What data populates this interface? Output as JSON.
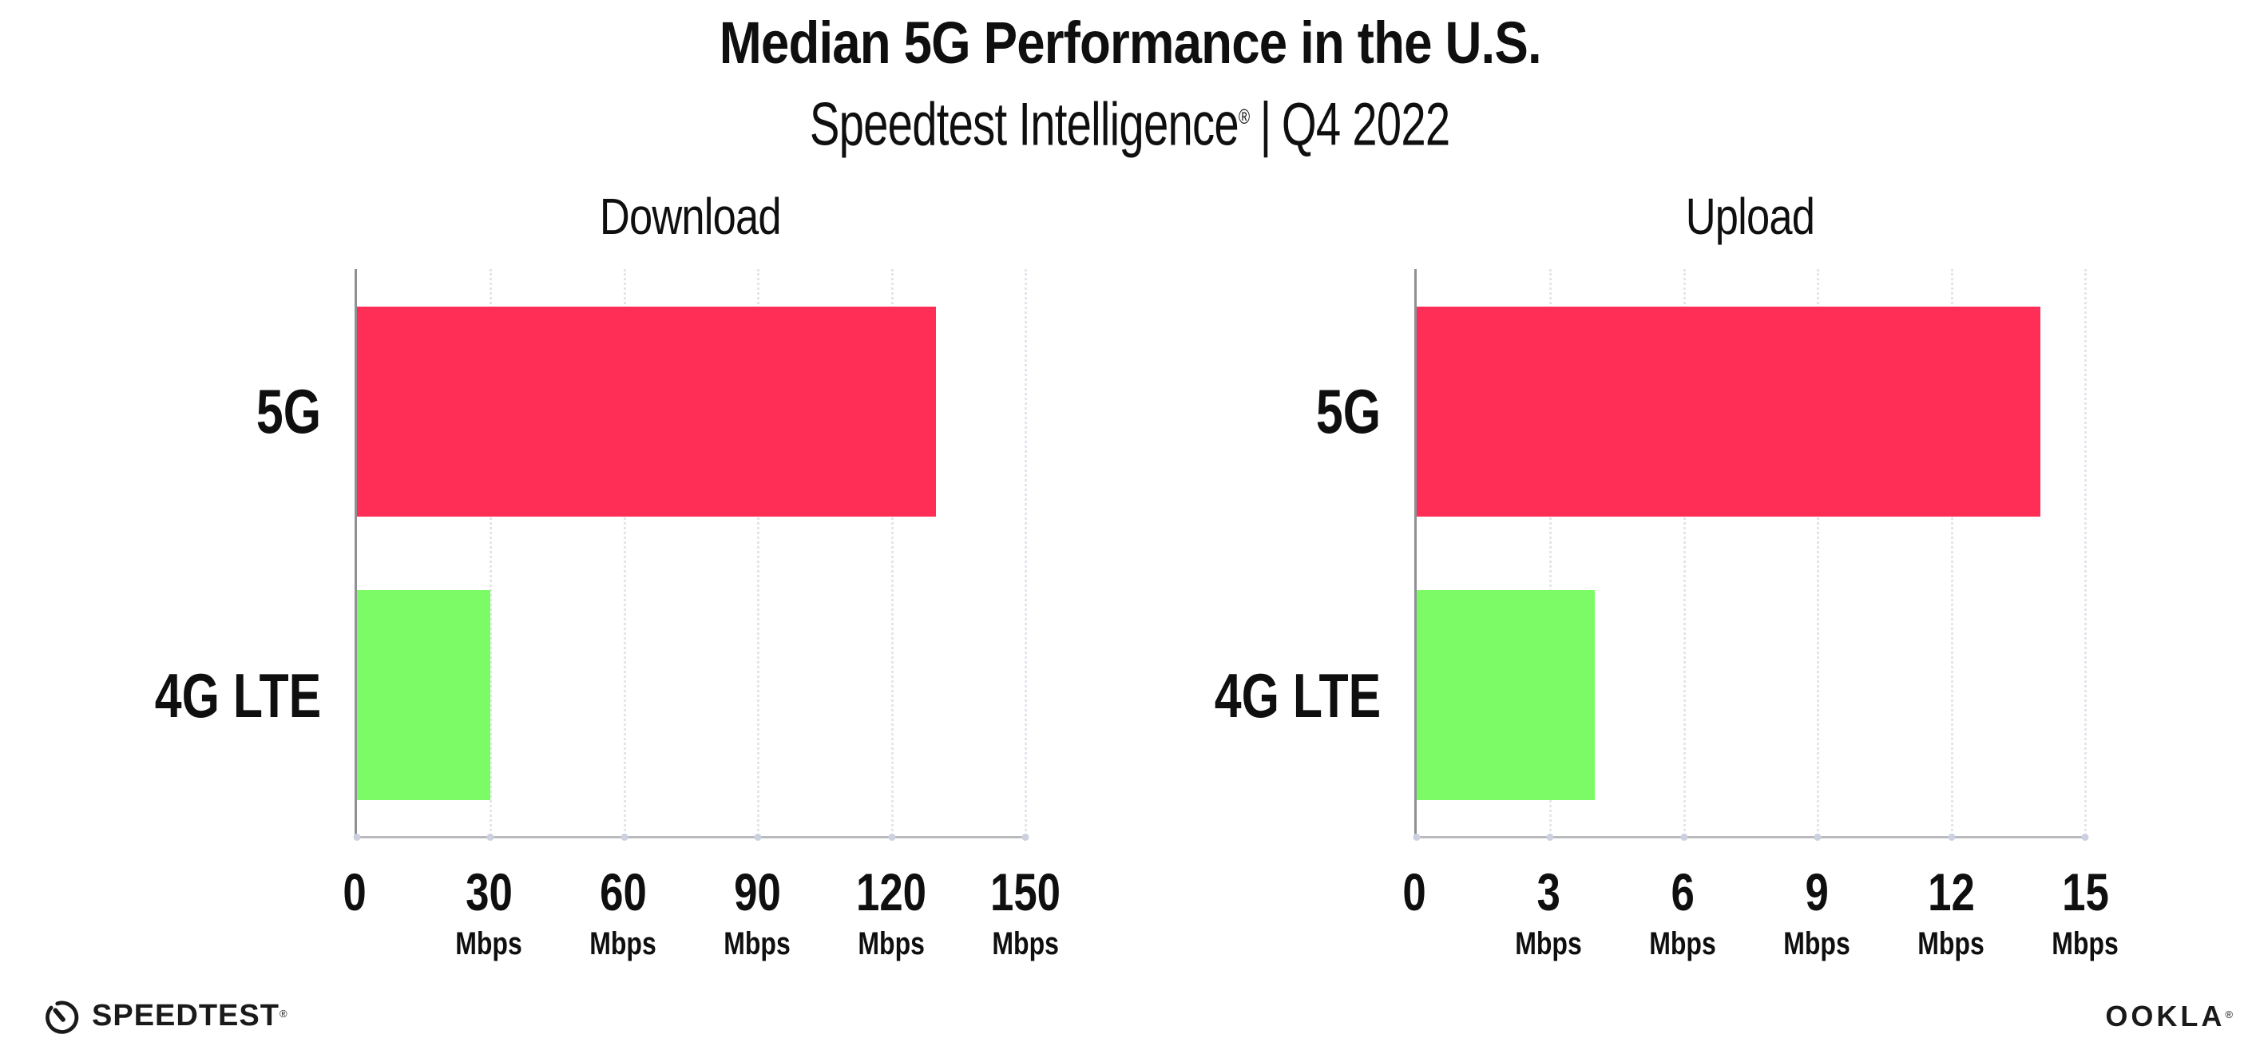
{
  "header": {
    "title": "Median 5G Performance in the U.S.",
    "subtitle_brand": "Speedtest Intelligence",
    "subtitle_reg": "®",
    "subtitle_sep": "|",
    "subtitle_period": "Q4 2022"
  },
  "chart_data": [
    {
      "type": "bar",
      "orientation": "horizontal",
      "title": "Download",
      "categories": [
        "5G",
        "4G LTE"
      ],
      "values": [
        130,
        30
      ],
      "unit_label": "Mbps",
      "xlabel": "",
      "ylabel": "",
      "xlim": [
        0,
        150
      ],
      "xticks": [
        0,
        30,
        60,
        90,
        120,
        150
      ],
      "grid": "vertical-dotted",
      "legend": "none",
      "bar_colors": [
        "#FF2E56",
        "#7DFB66"
      ]
    },
    {
      "type": "bar",
      "orientation": "horizontal",
      "title": "Upload",
      "categories": [
        "5G",
        "4G LTE"
      ],
      "values": [
        14,
        4
      ],
      "unit_label": "Mbps",
      "xlabel": "",
      "ylabel": "",
      "xlim": [
        0,
        15
      ],
      "xticks": [
        0,
        3,
        6,
        9,
        12,
        15
      ],
      "grid": "vertical-dotted",
      "legend": "none",
      "bar_colors": [
        "#FF2E56",
        "#7DFB66"
      ]
    }
  ],
  "footer": {
    "speedtest_logo_text": "SPEEDTEST",
    "speedtest_reg": "®",
    "ookla_logo_text": "OOKLA",
    "ookla_reg": "®"
  },
  "colors": {
    "bar_5g": "#FF2E56",
    "bar_4g_lte": "#7DFB66",
    "grid": "#e3e5ec",
    "y_axis": "#8f9094",
    "x_axis": "#b9babd",
    "tick_dot": "#ccd1df",
    "text": "#0f0f0f"
  }
}
